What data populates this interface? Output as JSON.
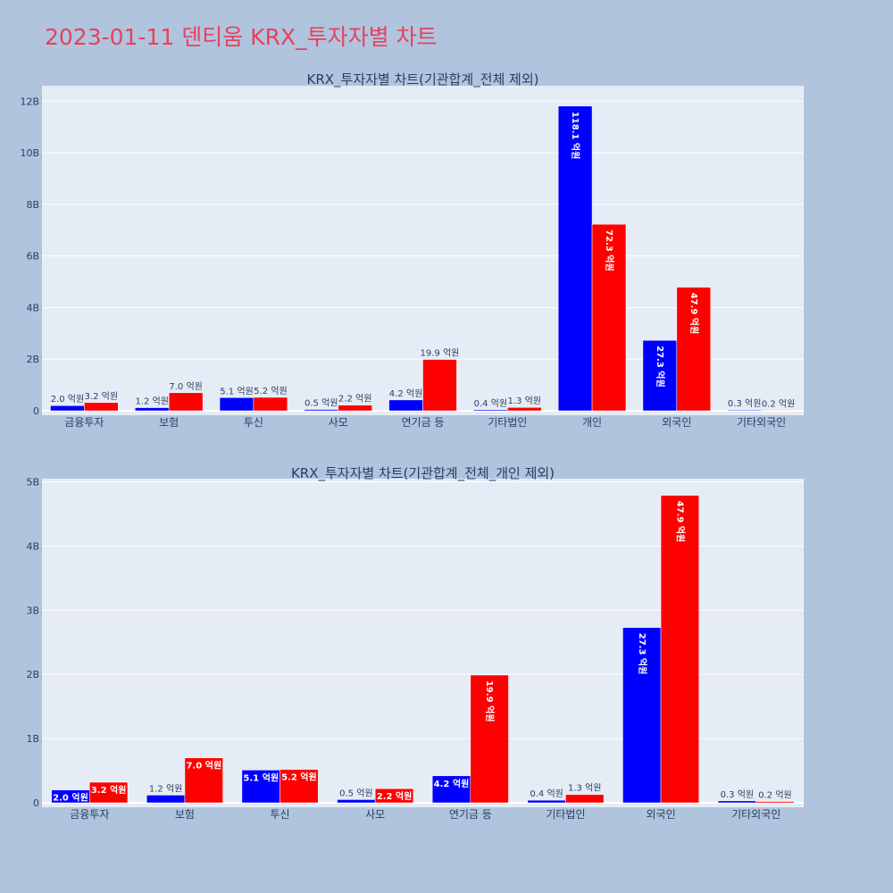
{
  "page": {
    "title": "2023-01-11 덴티움 KRX_투자자별 차트"
  },
  "colors": {
    "background": "#b0c4de",
    "plot_bg": "#e5ecf6",
    "title": "#e8415d",
    "series_a": "#0000ff",
    "series_b": "#ff0000",
    "axis_text": "#2a3f5f"
  },
  "chart_data": [
    {
      "type": "bar",
      "title": "KRX_투자자별 차트(기관합계_전체 제외)",
      "categories": [
        "금융투자",
        "보험",
        "투신",
        "사모",
        "연기금 등",
        "기타법인",
        "개인",
        "외국인",
        "기타외국인"
      ],
      "series": [
        {
          "values": [
            0.2,
            0.12,
            0.51,
            0.05,
            0.42,
            0.04,
            11.81,
            2.73,
            0.03
          ],
          "labels": [
            "2.0 억원",
            "1.2 억원",
            "5.1 억원",
            "0.5 억원",
            "4.2 억원",
            "0.4 억원",
            "118.1 억원",
            "27.3 억원",
            "0.3 억원"
          ]
        },
        {
          "values": [
            0.32,
            0.7,
            0.52,
            0.22,
            1.99,
            0.13,
            7.23,
            4.79,
            0.02
          ],
          "labels": [
            "3.2 억원",
            "7.0 억원",
            "5.2 억원",
            "2.2 억원",
            "19.9 억원",
            "1.3 억원",
            "72.3 억원",
            "47.9 억원",
            "0.2 억원"
          ]
        }
      ],
      "ylim": [
        0,
        12.6
      ],
      "ytick_values": [
        0,
        2,
        4,
        6,
        8,
        10,
        12
      ],
      "ytick_labels": [
        "0",
        "2B",
        "4B",
        "6B",
        "8B",
        "10B",
        "12B"
      ],
      "grid": true,
      "legend": "none"
    },
    {
      "type": "bar",
      "title": "KRX_투자자별 차트(기관합계_전체_개인 제외)",
      "categories": [
        "금융투자",
        "보험",
        "투신",
        "사모",
        "연기금 등",
        "기타법인",
        "외국인",
        "기타외국인"
      ],
      "series": [
        {
          "values": [
            0.2,
            0.12,
            0.51,
            0.05,
            0.42,
            0.04,
            2.73,
            0.03
          ],
          "labels": [
            "2.0 억원",
            "1.2 억원",
            "5.1 억원",
            "0.5 억원",
            "4.2 억원",
            "0.4 억원",
            "27.3 억원",
            "0.3 억원"
          ]
        },
        {
          "values": [
            0.32,
            0.7,
            0.52,
            0.22,
            1.99,
            0.13,
            4.79,
            0.02
          ],
          "labels": [
            "3.2 억원",
            "7.0 억원",
            "5.2 억원",
            "2.2 억원",
            "19.9 억원",
            "1.3 억원",
            "47.9 억원",
            "0.2 억원"
          ]
        }
      ],
      "ylim": [
        0,
        5.05
      ],
      "ytick_values": [
        0,
        1,
        2,
        3,
        4,
        5
      ],
      "ytick_labels": [
        "0",
        "1B",
        "2B",
        "3B",
        "4B",
        "5B"
      ],
      "grid": true,
      "legend": "none"
    }
  ]
}
